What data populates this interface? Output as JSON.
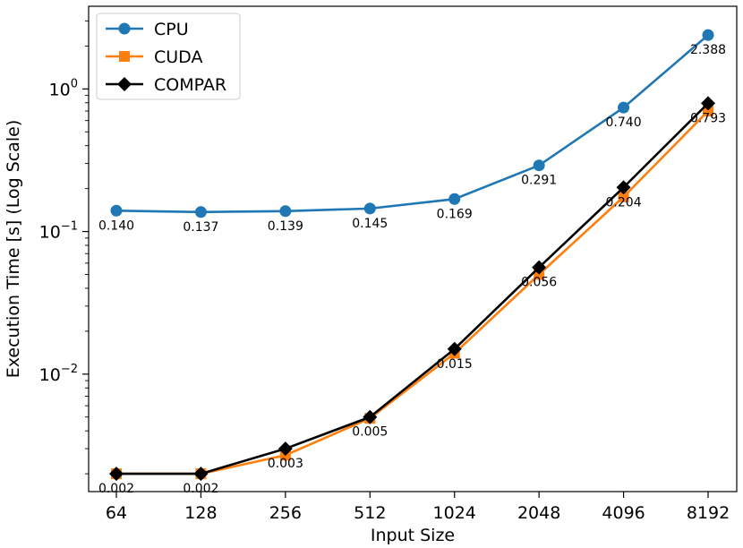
{
  "chart_data": {
    "type": "line",
    "xlabel": "Input Size",
    "ylabel": "Execution Time [s] (Log Scale)",
    "yscale": "log",
    "ylim": [
      0.0015,
      3.8
    ],
    "y_ticks": [
      {
        "value": 0.01,
        "base": "10",
        "exp": "−2"
      },
      {
        "value": 0.1,
        "base": "10",
        "exp": "−1"
      },
      {
        "value": 1,
        "base": "10",
        "exp": "0"
      }
    ],
    "categories": [
      "64",
      "128",
      "256",
      "512",
      "1024",
      "2048",
      "4096",
      "8192"
    ],
    "legend_position": "top-left",
    "series": [
      {
        "name": "CPU",
        "color": "#1f77b4",
        "marker": "circle",
        "values": [
          0.14,
          0.137,
          0.139,
          0.145,
          0.169,
          0.291,
          0.74,
          2.388
        ],
        "labels": [
          "0.140",
          "0.137",
          "0.139",
          "0.145",
          "0.169",
          "0.291",
          "0.740",
          "2.388"
        ]
      },
      {
        "name": "CUDA",
        "color": "#ff7f0e",
        "marker": "square",
        "values": [
          0.002,
          0.002,
          0.0027,
          0.0049,
          0.014,
          0.05,
          0.175,
          0.7
        ],
        "labels": []
      },
      {
        "name": "COMPAR",
        "color": "#000000",
        "marker": "diamond",
        "values": [
          0.002,
          0.002,
          0.003,
          0.005,
          0.015,
          0.056,
          0.204,
          0.793
        ],
        "labels": [
          "0.002",
          "0.002",
          "0.003",
          "0.005",
          "0.015",
          "0.056",
          "0.204",
          "0.793"
        ]
      }
    ]
  }
}
